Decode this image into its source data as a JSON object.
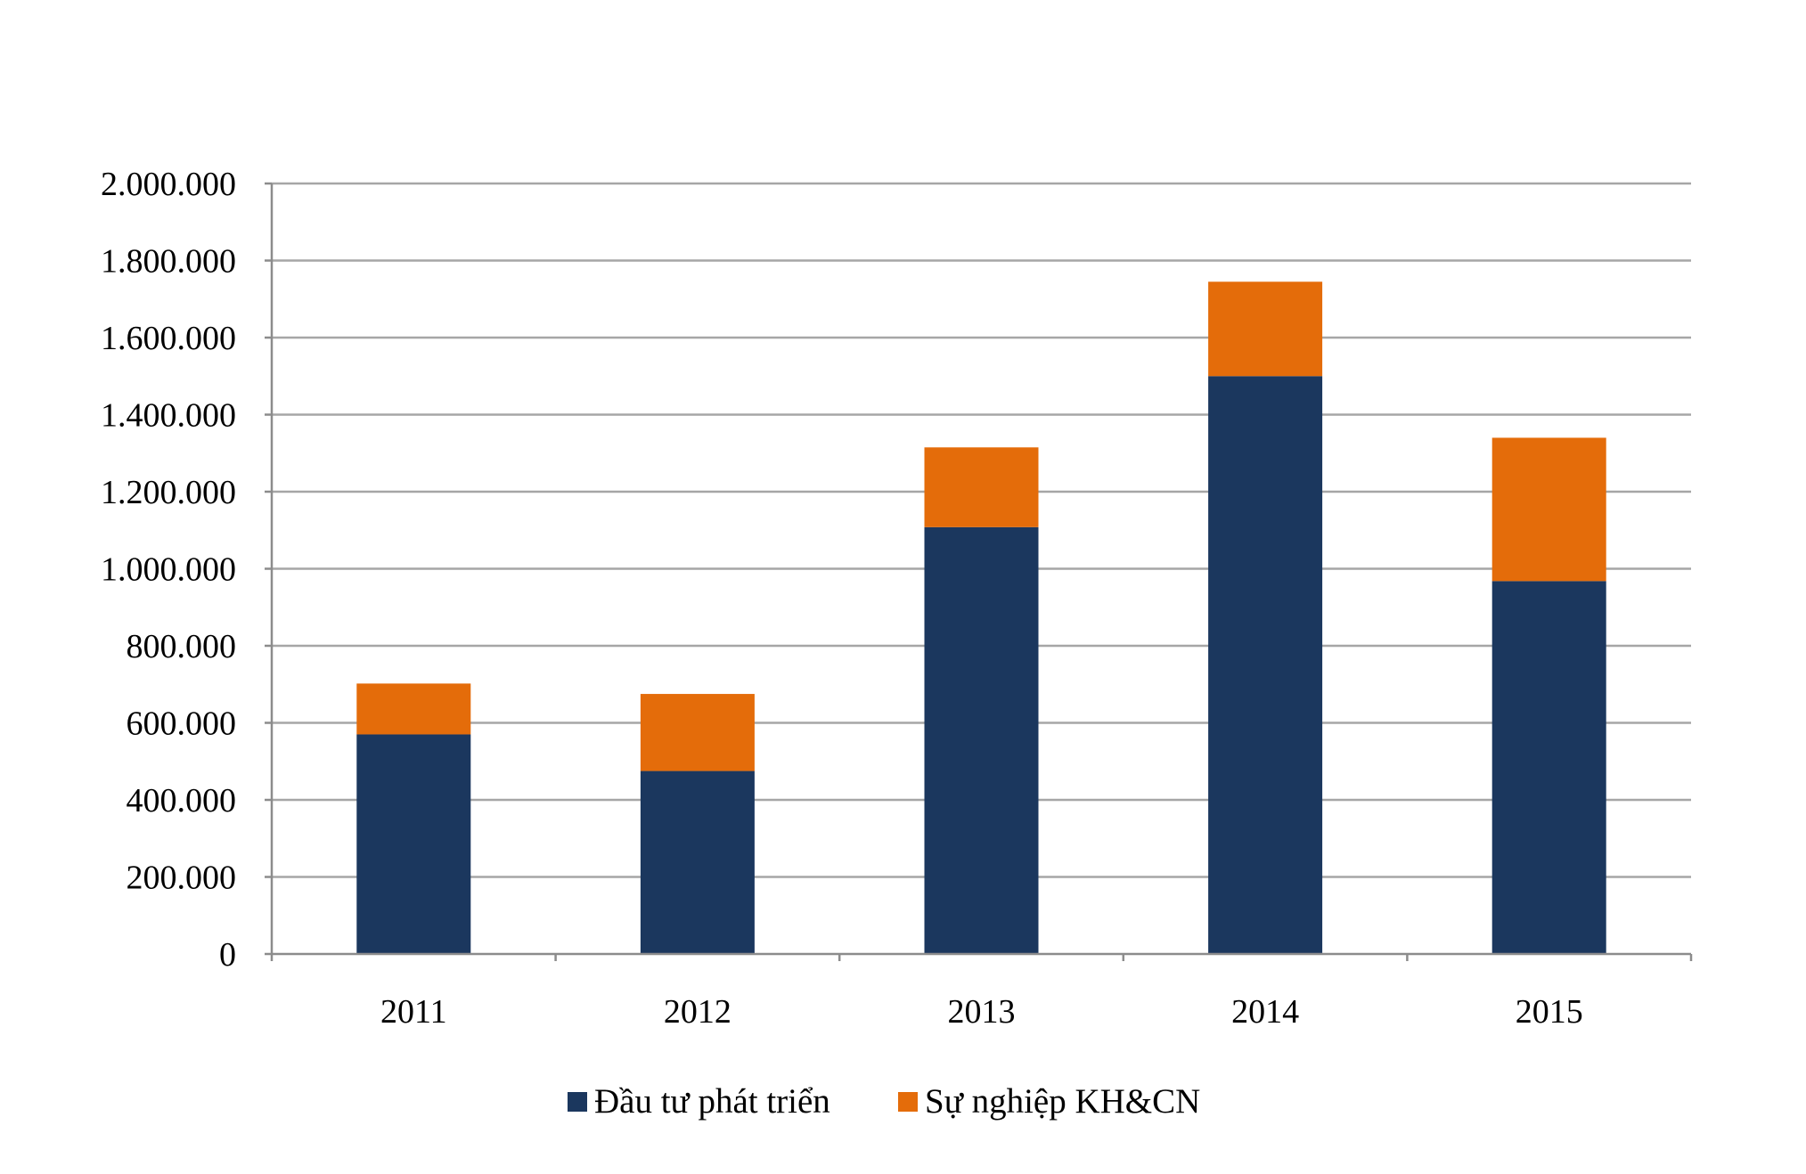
{
  "chart_data": {
    "type": "bar",
    "stacked": true,
    "title": "",
    "xlabel": "",
    "ylabel": "",
    "categories": [
      "2011",
      "2012",
      "2013",
      "2014",
      "2015"
    ],
    "series": [
      {
        "name": "Đầu tư phát triển",
        "color": "#1b375e",
        "values": [
          570000,
          475000,
          1108000,
          1500000,
          968000
        ]
      },
      {
        "name": "Sự nghiệp KH&CN",
        "color": "#e46c0a",
        "values": [
          132000,
          200000,
          207000,
          245000,
          372000
        ]
      }
    ],
    "ylim": [
      0,
      2000000
    ],
    "yticks": [
      0,
      200000,
      400000,
      600000,
      800000,
      1000000,
      1200000,
      1400000,
      1600000,
      1800000,
      2000000
    ],
    "ytick_labels": [
      "0",
      "200.000",
      "400.000",
      "600.000",
      "800.000",
      "1.000.000",
      "1.200.000",
      "1.400.000",
      "1.600.000",
      "1.800.000",
      "2.000.000"
    ],
    "grid": true,
    "gridline_color": "#a6a6a6",
    "legend_position": "bottom"
  }
}
